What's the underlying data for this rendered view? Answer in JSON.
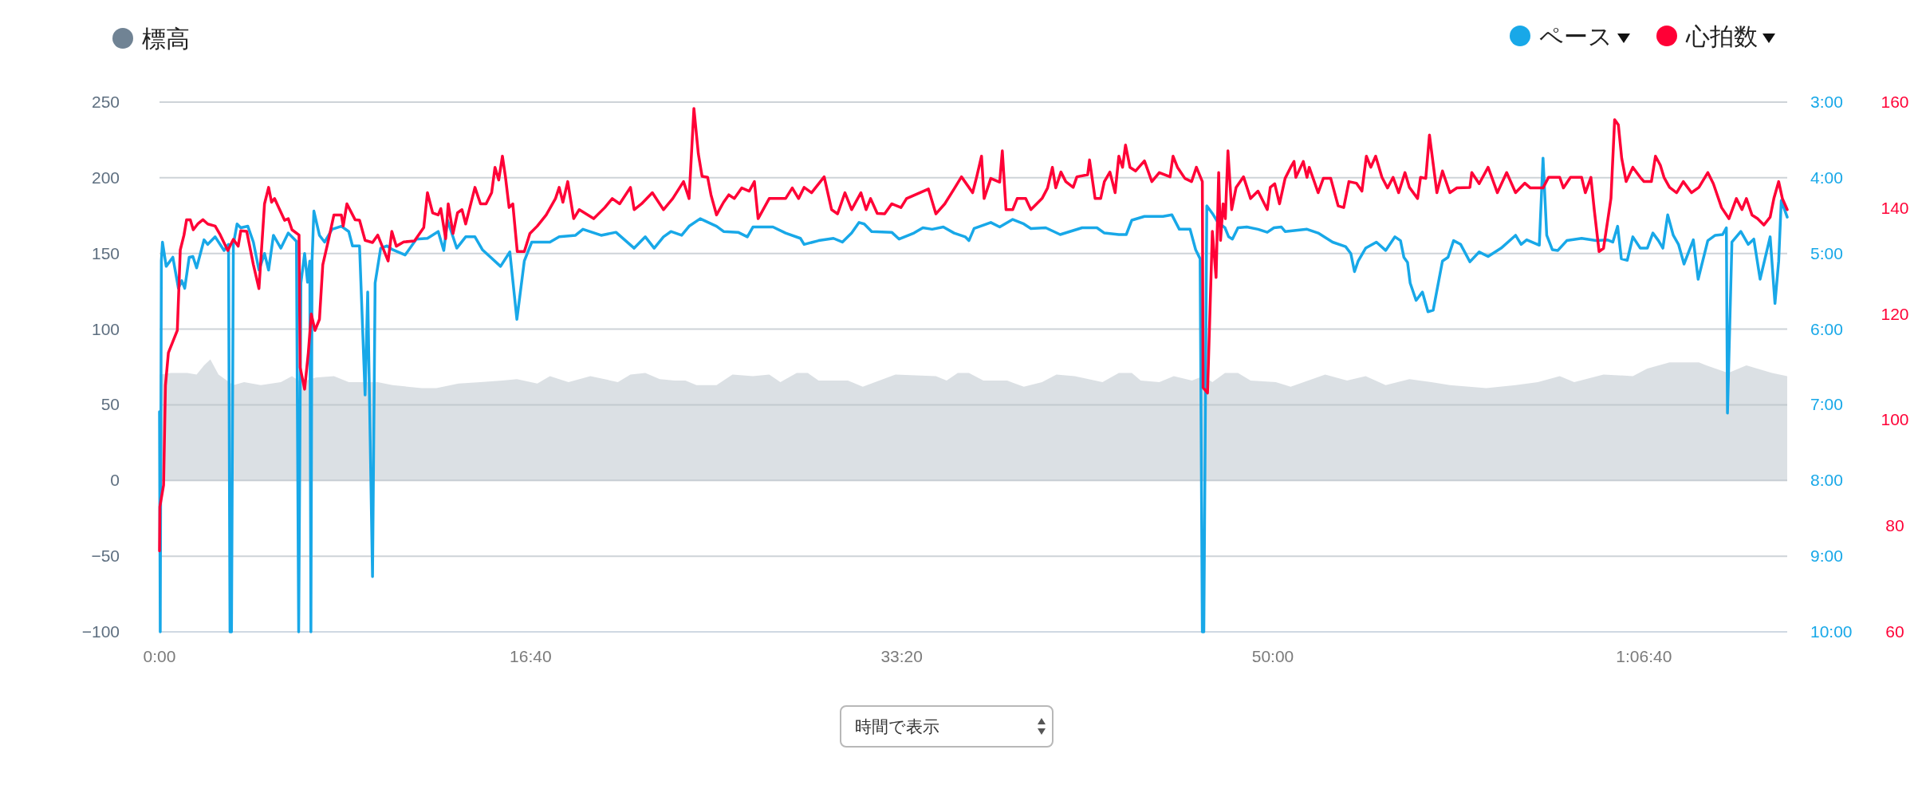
{
  "chart_data": {
    "type": "line",
    "legend": "top",
    "grid": "y",
    "marker": "none",
    "xlim": [
      0,
      4386
    ],
    "xticks": [
      {
        "value": 0,
        "label": "0:00"
      },
      {
        "value": 1000,
        "label": "16:40"
      },
      {
        "value": 2000,
        "label": "33:20"
      },
      {
        "value": 3000,
        "label": "50:00"
      },
      {
        "value": 4000,
        "label": "1:06:40"
      }
    ],
    "ylim": [
      -100,
      250
    ],
    "yticks": [
      {
        "value": -100,
        "label": "−100"
      },
      {
        "value": -50,
        "label": "−50"
      },
      0,
      50,
      100,
      150,
      200,
      250
    ],
    "y2lim": [
      10,
      3
    ],
    "y2ticks": [
      {
        "value": 3,
        "label": "3:00"
      },
      {
        "value": 4,
        "label": "4:00"
      },
      {
        "value": 5,
        "label": "5:00"
      },
      {
        "value": 6,
        "label": "6:00"
      },
      {
        "value": 7,
        "label": "7:00"
      },
      {
        "value": 8,
        "label": "8:00"
      },
      {
        "value": 9,
        "label": "9:00"
      },
      {
        "value": 10,
        "label": "10:00"
      }
    ],
    "y3lim": [
      60,
      160
    ],
    "y3ticks": [
      60,
      80,
      100,
      120,
      140,
      160
    ],
    "annotations": [
      "時間で表示"
    ],
    "series": [
      {
        "name": "標高",
        "type": "area",
        "axis": "y",
        "color": "#708394",
        "x": [
          0,
          1,
          31,
          75,
          100,
          120,
          137,
          159,
          199,
          228,
          273,
          327,
          357,
          381,
          421,
          470,
          510,
          588,
          628,
          707,
          746,
          806,
          865,
          924,
          963,
          1018,
          1052,
          1102,
          1161,
          1235,
          1269,
          1309,
          1348,
          1388,
          1417,
          1447,
          1501,
          1544,
          1599,
          1643,
          1673,
          1717,
          1747,
          1776,
          1855,
          1895,
          1983,
          2092,
          2121,
          2151,
          2181,
          2220,
          2284,
          2329,
          2378,
          2417,
          2466,
          2541,
          2585,
          2620,
          2644,
          2694,
          2733,
          2782,
          2812,
          2837,
          2871,
          2906,
          2940,
          3008,
          3048,
          3141,
          3200,
          3250,
          3304,
          3368,
          3427,
          3477,
          3575,
          3654,
          3714,
          3773,
          3812,
          3891,
          3970,
          4009,
          4069,
          4148,
          4168,
          4227,
          4276,
          4345,
          4386
        ],
        "values": [
          70,
          70,
          71,
          71,
          70,
          76,
          80,
          70,
          63,
          65,
          63,
          65,
          69,
          65,
          68,
          69,
          65,
          65,
          63,
          61,
          61,
          64,
          65,
          66,
          67,
          64,
          69,
          65,
          69,
          65,
          70,
          71,
          67,
          66,
          66,
          63,
          63,
          70,
          69,
          70,
          65,
          71,
          71,
          66,
          66,
          62,
          70,
          69,
          66,
          71,
          71,
          66,
          66,
          62,
          65,
          70,
          69,
          65,
          71,
          71,
          66,
          65,
          69,
          66,
          69,
          65,
          71,
          71,
          66,
          65,
          62,
          70,
          66,
          69,
          63,
          67,
          65,
          63,
          61,
          63,
          65,
          69,
          65,
          70,
          69,
          74,
          78,
          78,
          76,
          71,
          76,
          71,
          69
        ]
      },
      {
        "name": "ペース",
        "type": "line",
        "axis": "y2",
        "color": "#18a8e8",
        "x": [
          0,
          2,
          5,
          8,
          18,
          36,
          51,
          60,
          68,
          80,
          90,
          100,
          120,
          130,
          150,
          174,
          186,
          190,
          194,
          199,
          209,
          219,
          238,
          253,
          268,
          283,
          294,
          307,
          327,
          347,
          369,
          375,
          381,
          391,
          399,
          405,
          408,
          411,
          416,
          431,
          445,
          465,
          490,
          510,
          520,
          539,
          554,
          561,
          574,
          581,
          596,
          613,
          628,
          662,
          692,
          722,
          751,
          766,
          776,
          801,
          825,
          850,
          870,
          919,
          944,
          963,
          983,
          1003,
          1052,
          1077,
          1121,
          1141,
          1190,
          1230,
          1279,
          1309,
          1333,
          1358,
          1378,
          1407,
          1427,
          1457,
          1501,
          1520,
          1559,
          1584,
          1599,
          1653,
          1687,
          1727,
          1737,
          1776,
          1816,
          1840,
          1865,
          1885,
          1899,
          1919,
          1973,
          1993,
          2033,
          2057,
          2082,
          2112,
          2141,
          2171,
          2181,
          2195,
          2240,
          2264,
          2299,
          2329,
          2348,
          2388,
          2427,
          2486,
          2526,
          2546,
          2585,
          2605,
          2620,
          2654,
          2704,
          2728,
          2748,
          2777,
          2792,
          2804,
          2810,
          2814,
          2822,
          2837,
          2852,
          2871,
          2881,
          2891,
          2906,
          2930,
          2960,
          2985,
          3003,
          3023,
          3033,
          3092,
          3122,
          3161,
          3196,
          3210,
          3220,
          3230,
          3250,
          3279,
          3304,
          3329,
          3344,
          3353,
          3363,
          3370,
          3386,
          3403,
          3418,
          3432,
          3457,
          3472,
          3487,
          3506,
          3531,
          3556,
          3580,
          3615,
          3654,
          3669,
          3684,
          3718,
          3728,
          3738,
          3753,
          3768,
          3792,
          3832,
          3871,
          3901,
          3916,
          3929,
          3939,
          3955,
          3970,
          3990,
          4009,
          4024,
          4039,
          4051,
          4064,
          4079,
          4093,
          4108,
          4133,
          4146,
          4172,
          4192,
          4212,
          4222,
          4225,
          4237,
          4261,
          4281,
          4296,
          4313,
          4340,
          4353,
          4363,
          4370,
          4386
        ],
        "values": [
          7.09,
          10,
          5.1,
          4.85,
          5.17,
          5.05,
          5.46,
          5.36,
          5.46,
          5.05,
          5.04,
          5.19,
          4.82,
          4.88,
          4.78,
          4.96,
          4.88,
          10,
          10,
          4.88,
          4.61,
          4.66,
          4.64,
          4.85,
          5.22,
          5.0,
          5.22,
          4.76,
          4.93,
          4.73,
          4.84,
          10,
          5.39,
          5.0,
          5.38,
          5.1,
          10,
          5.1,
          4.44,
          4.76,
          4.85,
          4.68,
          4.64,
          4.71,
          4.9,
          4.9,
          6.87,
          5.51,
          9.27,
          5.39,
          4.93,
          4.9,
          4.95,
          5.02,
          4.81,
          4.8,
          4.71,
          4.96,
          4.56,
          4.93,
          4.78,
          4.78,
          4.95,
          5.17,
          4.98,
          5.87,
          5.1,
          4.85,
          4.85,
          4.78,
          4.76,
          4.68,
          4.76,
          4.72,
          4.93,
          4.78,
          4.93,
          4.78,
          4.71,
          4.76,
          4.64,
          4.54,
          4.64,
          4.71,
          4.72,
          4.78,
          4.65,
          4.65,
          4.73,
          4.8,
          4.88,
          4.83,
          4.8,
          4.85,
          4.73,
          4.59,
          4.61,
          4.71,
          4.72,
          4.81,
          4.73,
          4.66,
          4.68,
          4.65,
          4.73,
          4.78,
          4.83,
          4.67,
          4.59,
          4.65,
          4.55,
          4.61,
          4.67,
          4.66,
          4.75,
          4.66,
          4.66,
          4.73,
          4.75,
          4.75,
          4.56,
          4.51,
          4.51,
          4.49,
          4.68,
          4.68,
          4.95,
          5.07,
          10,
          10,
          4.37,
          4.47,
          4.59,
          4.66,
          4.78,
          4.81,
          4.66,
          4.65,
          4.68,
          4.72,
          4.66,
          4.65,
          4.71,
          4.68,
          4.73,
          4.85,
          4.91,
          5.0,
          5.24,
          5.1,
          4.93,
          4.85,
          4.96,
          4.78,
          4.83,
          5.05,
          5.12,
          5.39,
          5.62,
          5.51,
          5.77,
          5.75,
          5.1,
          5.05,
          4.83,
          4.88,
          5.11,
          4.98,
          5.04,
          4.93,
          4.76,
          4.88,
          4.82,
          4.89,
          3.74,
          4.76,
          4.95,
          4.96,
          4.83,
          4.8,
          4.83,
          4.82,
          4.85,
          4.64,
          5.07,
          5.09,
          4.78,
          4.93,
          4.93,
          4.73,
          4.83,
          4.93,
          4.49,
          4.76,
          4.88,
          5.14,
          4.82,
          5.34,
          4.83,
          4.76,
          4.75,
          4.66,
          7.11,
          4.85,
          4.71,
          4.88,
          4.81,
          5.34,
          4.78,
          5.66,
          5.1,
          4.3,
          4.52
        ]
      },
      {
        "name": "心拍数",
        "type": "line",
        "axis": "y3",
        "color": "#ff0036",
        "x": [
          0,
          1,
          11,
          16,
          24,
          36,
          48,
          56,
          66,
          73,
          83,
          91,
          103,
          117,
          130,
          150,
          164,
          184,
          199,
          212,
          219,
          235,
          253,
          268,
          283,
          294,
          302,
          310,
          337,
          347,
          357,
          376,
          379,
          391,
          401,
          409,
          419,
          431,
          440,
          455,
          470,
          490,
          495,
          505,
          527,
          539,
          554,
          574,
          588,
          616,
          626,
          638,
          658,
          687,
          712,
          722,
          736,
          751,
          758,
          771,
          778,
          791,
          803,
          815,
          825,
          850,
          865,
          880,
          895,
          904,
          914,
          924,
          932,
          942,
          952,
          964,
          983,
          998,
          1018,
          1042,
          1067,
          1077,
          1087,
          1100,
          1116,
          1131,
          1170,
          1200,
          1220,
          1240,
          1269,
          1279,
          1299,
          1328,
          1358,
          1383,
          1412,
          1427,
          1440,
          1452,
          1462,
          1477,
          1486,
          1501,
          1520,
          1534,
          1549,
          1569,
          1589,
          1603,
          1613,
          1643,
          1687,
          1705,
          1722,
          1737,
          1757,
          1791,
          1811,
          1827,
          1847,
          1865,
          1890,
          1904,
          1916,
          1934,
          1954,
          1973,
          1998,
          2013,
          2072,
          2092,
          2116,
          2141,
          2161,
          2191,
          2202,
          2215,
          2222,
          2240,
          2264,
          2271,
          2281,
          2299,
          2311,
          2334,
          2348,
          2378,
          2393,
          2406,
          2415,
          2429,
          2442,
          2462,
          2472,
          2501,
          2506,
          2521,
          2536,
          2546,
          2561,
          2575,
          2585,
          2595,
          2603,
          2615,
          2630,
          2654,
          2674,
          2694,
          2723,
          2731,
          2743,
          2763,
          2781,
          2794,
          2810,
          2812,
          2824,
          2837,
          2847,
          2854,
          2859,
          2866,
          2872,
          2879,
          2889,
          2901,
          2921,
          2940,
          2960,
          2985,
          2993,
          3005,
          3018,
          3033,
          3048,
          3057,
          3062,
          3082,
          3092,
          3098,
          3122,
          3136,
          3156,
          3176,
          3191,
          3205,
          3225,
          3240,
          3252,
          3264,
          3277,
          3294,
          3309,
          3324,
          3339,
          3356,
          3368,
          3390,
          3398,
          3412,
          3422,
          3442,
          3457,
          3477,
          3496,
          3531,
          3536,
          3556,
          3580,
          3605,
          3630,
          3654,
          3679,
          3694,
          3728,
          3743,
          3773,
          3783,
          3802,
          3832,
          3842,
          3857,
          3866,
          3879,
          3891,
          3903,
          3911,
          3921,
          3931,
          3940,
          3952,
          3970,
          3990,
          4000,
          4020,
          4031,
          4044,
          4054,
          4069,
          4088,
          4106,
          4128,
          4148,
          4172,
          4187,
          4209,
          4229,
          4249,
          4264,
          4276,
          4291,
          4306,
          4323,
          4340,
          4350,
          4363,
          4373,
          4386
        ],
        "values": [
          75.3,
          83.6,
          87.7,
          106.5,
          112.7,
          114.8,
          116.9,
          132.1,
          134.9,
          137.8,
          137.8,
          135.9,
          137,
          137.8,
          137,
          136.6,
          134.9,
          132,
          134.1,
          132.8,
          135.7,
          135.6,
          129.3,
          124.8,
          140.8,
          143.9,
          141.1,
          141.8,
          137.7,
          138,
          135.9,
          134.9,
          109.9,
          105.8,
          112.7,
          120,
          116.9,
          119,
          129.3,
          133.9,
          138.7,
          138.7,
          136.6,
          140.8,
          137.8,
          137.7,
          133.9,
          133.5,
          134.9,
          130,
          135.6,
          132.8,
          133.6,
          133.8,
          136.3,
          142.9,
          139.1,
          138.7,
          139.9,
          134.2,
          140.8,
          135.2,
          139.1,
          139.7,
          137,
          143.9,
          140.8,
          140.8,
          142.9,
          147.7,
          145.3,
          149.8,
          146,
          140.1,
          140.8,
          131.8,
          131.8,
          135.2,
          136.6,
          138.7,
          141.8,
          143.9,
          141.1,
          145,
          138,
          139.7,
          138,
          140.1,
          141.8,
          140.8,
          143.9,
          139.7,
          140.8,
          142.9,
          139.7,
          141.8,
          145,
          141.8,
          158.8,
          150.2,
          146,
          145.8,
          142.5,
          138.7,
          141.1,
          142.5,
          141.8,
          143.8,
          143.2,
          145,
          138,
          141.8,
          141.8,
          143.8,
          141.8,
          143.9,
          142.9,
          145.9,
          139.7,
          138.9,
          142.9,
          139.7,
          142.9,
          139.7,
          141.8,
          139,
          138.9,
          140.8,
          140.1,
          141.8,
          143.6,
          138.9,
          140.8,
          143.6,
          145.9,
          142.9,
          145.9,
          149.8,
          141.8,
          145.6,
          144.9,
          150.8,
          139.7,
          139.7,
          141.8,
          141.8,
          139.7,
          141.8,
          143.8,
          147.7,
          143.8,
          146.8,
          145,
          143.9,
          145.9,
          146.3,
          149.1,
          141.8,
          141.8,
          145,
          146.8,
          142.9,
          149.8,
          147.7,
          151.9,
          147.7,
          147,
          148.9,
          145,
          146.7,
          145.9,
          149.8,
          147.7,
          145.6,
          145,
          147.7,
          145,
          106.1,
          105.1,
          135.6,
          126.9,
          146.7,
          133.9,
          140.8,
          138,
          150.8,
          139.7,
          143.9,
          145.9,
          141.8,
          143.2,
          139.7,
          143.9,
          144.6,
          140.8,
          145.6,
          147.7,
          148.8,
          145.8,
          148.8,
          145.8,
          147.7,
          142.9,
          145.6,
          145.6,
          140.4,
          140.1,
          145,
          144.7,
          143.2,
          149.8,
          147.7,
          149.8,
          145.8,
          143.8,
          145.8,
          142.9,
          146.7,
          143.9,
          141.8,
          145.8,
          145.6,
          153.8,
          142.9,
          147,
          142.9,
          143.8,
          143.9,
          146.7,
          144.6,
          147.7,
          142.9,
          146.7,
          142.9,
          144.7,
          143.8,
          143.8,
          145.8,
          145.8,
          143.8,
          145.8,
          145.8,
          142.9,
          145.8,
          139.7,
          131.8,
          132.4,
          138,
          141.8,
          156.7,
          155.7,
          149.4,
          145,
          147.7,
          145.8,
          145,
          145,
          149.8,
          148.1,
          145.8,
          143.9,
          142.9,
          145,
          142.9,
          143.9,
          146.7,
          144.6,
          140.1,
          138,
          141.8,
          139.7,
          141.8,
          138.7,
          138,
          136.8,
          138.3,
          141.8,
          145,
          141.8,
          139.7
        ]
      }
    ]
  }
}
